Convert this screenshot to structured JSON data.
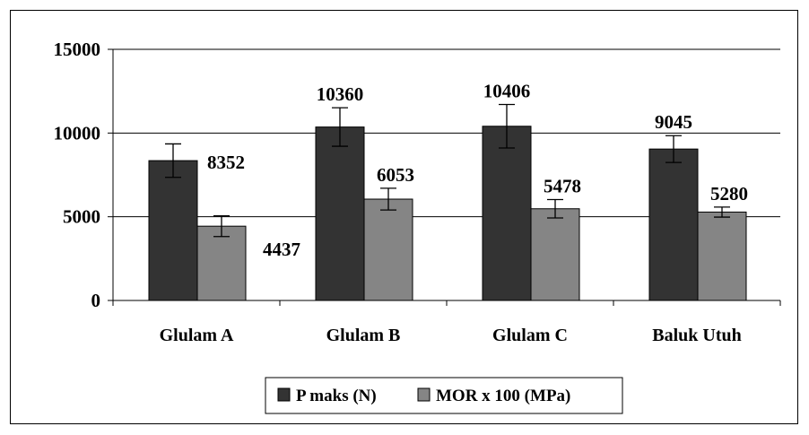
{
  "chart_data": {
    "type": "bar",
    "categories": [
      "Glulam A",
      "Glulam B",
      "Glulam C",
      "Baluk Utuh"
    ],
    "series": [
      {
        "name": "P maks (N)",
        "color": "#333333",
        "values": [
          8352,
          10360,
          10406,
          9045
        ],
        "error": [
          1000,
          1150,
          1300,
          800
        ],
        "labels": [
          "8352",
          "10360",
          "10406",
          "9045"
        ]
      },
      {
        "name": "MOR x 100 (MPa)",
        "color": "#858585",
        "values": [
          4437,
          6053,
          5478,
          5280
        ],
        "error": [
          620,
          650,
          550,
          300
        ],
        "labels": [
          "4437",
          "6053",
          "5478",
          "5280"
        ]
      }
    ],
    "ylim": [
      0,
      15000
    ],
    "yticks": [
      "0",
      "5000",
      "10000",
      "15000"
    ],
    "grid": true,
    "legend_position": "bottom"
  }
}
